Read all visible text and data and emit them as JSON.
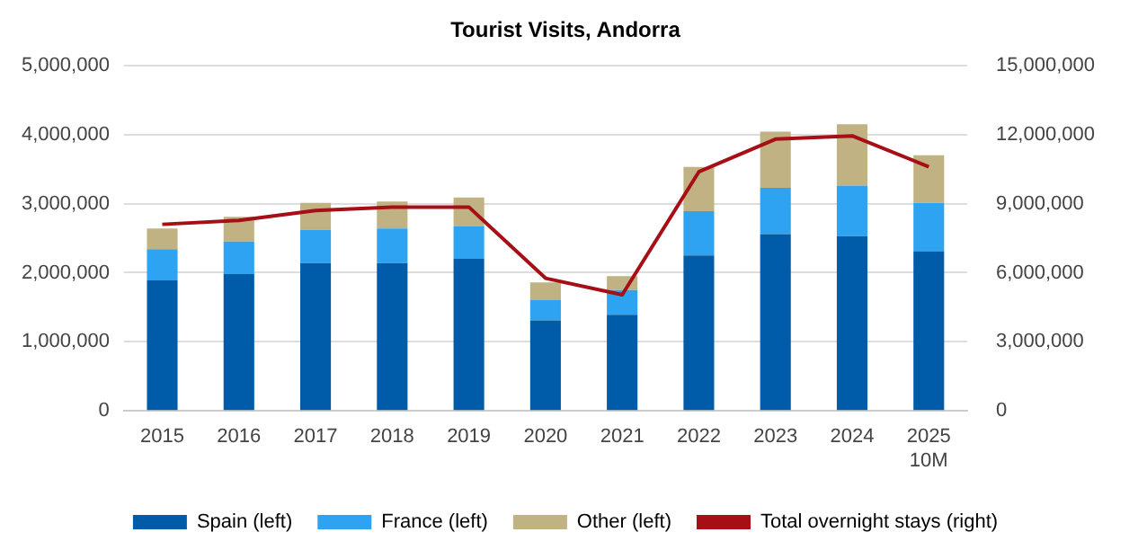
{
  "chart_data": {
    "type": "bar",
    "title": "Tourist Visits, Andorra",
    "stacked": true,
    "grid": "y",
    "legend": "bottom",
    "categories": [
      "2015",
      "2016",
      "2017",
      "2018",
      "2019",
      "2020",
      "2021",
      "2022",
      "2023",
      "2024",
      "2025\n10M"
    ],
    "ylim": [
      0,
      5000000
    ],
    "yticks": [
      0,
      {
        "value": 1000000,
        "label": "1,000,000"
      },
      {
        "value": 2000000,
        "label": "2,000,000"
      },
      {
        "value": 3000000,
        "label": "3,000,000"
      },
      {
        "value": 4000000,
        "label": "4,000,000"
      },
      {
        "value": 5000000,
        "label": "5,000,000"
      }
    ],
    "y2lim": [
      0,
      15000000
    ],
    "y2ticks": [
      0,
      {
        "value": 3000000,
        "label": "3,000,000"
      },
      {
        "value": 6000000,
        "label": "6,000,000"
      },
      {
        "value": 9000000,
        "label": "9,000,000"
      },
      {
        "value": 12000000,
        "label": "12,000,000"
      },
      {
        "value": 15000000,
        "label": "15,000,000"
      }
    ],
    "series": [
      {
        "name": "Spain (left)",
        "color": "#005ca8",
        "values": [
          1890000,
          1980000,
          2140000,
          2140000,
          2200000,
          1310000,
          1390000,
          2250000,
          2560000,
          2530000,
          2310000
        ]
      },
      {
        "name": "France (left)",
        "color": "#2ea3f2",
        "values": [
          450000,
          470000,
          480000,
          500000,
          470000,
          300000,
          360000,
          640000,
          670000,
          730000,
          700000
        ]
      },
      {
        "name": "Other (left)",
        "color": "#c0b283",
        "values": [
          300000,
          360000,
          390000,
          390000,
          420000,
          250000,
          200000,
          640000,
          810000,
          890000,
          690000
        ]
      },
      {
        "name": "Total overnight stays (right)",
        "color": "#a50f15",
        "type": "line",
        "axis": "y2",
        "values": [
          8100000,
          8270000,
          8700000,
          8850000,
          8850000,
          5760000,
          5040000,
          10380000,
          11800000,
          11940000,
          10600000
        ]
      }
    ]
  }
}
